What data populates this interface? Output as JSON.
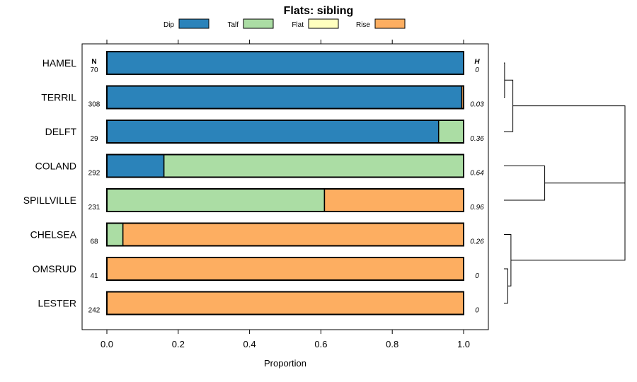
{
  "chart_data": {
    "type": "bar",
    "orientation": "horizontal",
    "stacked": true,
    "title": "Flats: sibling",
    "xlabel": "Proportion",
    "ylabel": "",
    "xlim": [
      0,
      1
    ],
    "xticks": [
      "0.0",
      "0.2",
      "0.4",
      "0.6",
      "0.8",
      "1.0"
    ],
    "xtick_values": [
      0,
      0.2,
      0.4,
      0.6,
      0.8,
      1.0
    ],
    "legend_position": "top",
    "n_header": "N",
    "h_header": "H",
    "categories": [
      "HAMEL",
      "TERRIL",
      "DELFT",
      "COLAND",
      "SPILLVILLE",
      "CHELSEA",
      "OMSRUD",
      "LESTER"
    ],
    "n": [
      "70",
      "308",
      "29",
      "292",
      "231",
      "68",
      "41",
      "242"
    ],
    "h": [
      "0",
      "0.03",
      "0.36",
      "0.64",
      "0.96",
      "0.26",
      "0",
      "0"
    ],
    "series": [
      {
        "name": "Dip",
        "color": "#2b83ba",
        "values": [
          1.0,
          0.995,
          0.93,
          0.16,
          0.0,
          0.0,
          0.0,
          0.0
        ]
      },
      {
        "name": "Talf",
        "color": "#abdda4",
        "values": [
          0.0,
          0.0,
          0.07,
          0.84,
          0.61,
          0.045,
          0.0,
          0.0
        ]
      },
      {
        "name": "Flat",
        "color": "#ffffbf",
        "values": [
          0.0,
          0.0,
          0.0,
          0.0,
          0.0,
          0.0,
          0.0,
          0.0
        ]
      },
      {
        "name": "Rise",
        "color": "#fdae61",
        "values": [
          0.0,
          0.005,
          0.0,
          0.0,
          0.39,
          0.955,
          1.0,
          1.0
        ]
      }
    ],
    "dendrogram": {
      "leaves": [
        "HAMEL",
        "TERRIL",
        "DELFT",
        "COLAND",
        "SPILLVILLE",
        "CHELSEA",
        "OMSRUD",
        "LESTER"
      ],
      "merges": [
        {
          "a": "HAMEL",
          "b": "TERRIL",
          "height": 0.005
        },
        {
          "a": "HAMEL+TERRIL",
          "b": "DELFT",
          "height": 0.07
        },
        {
          "a": "COLAND",
          "b": "SPILLVILLE",
          "height": 0.32
        },
        {
          "a": "OMSRUD",
          "b": "LESTER",
          "height": 0.03
        },
        {
          "a": "CHELSEA",
          "b": "OMSRUD+LESTER",
          "height": 0.055
        },
        {
          "a": "COLAND+SPILLVILLE",
          "b": "CHELSEA+OMSRUD+LESTER",
          "height": 0.95
        },
        {
          "a": "HAMEL+TERRIL+DELFT",
          "b": "COLAND+SPILLVILLE+CHELSEA+OMSRUD+LESTER",
          "height": 0.95
        }
      ]
    }
  }
}
